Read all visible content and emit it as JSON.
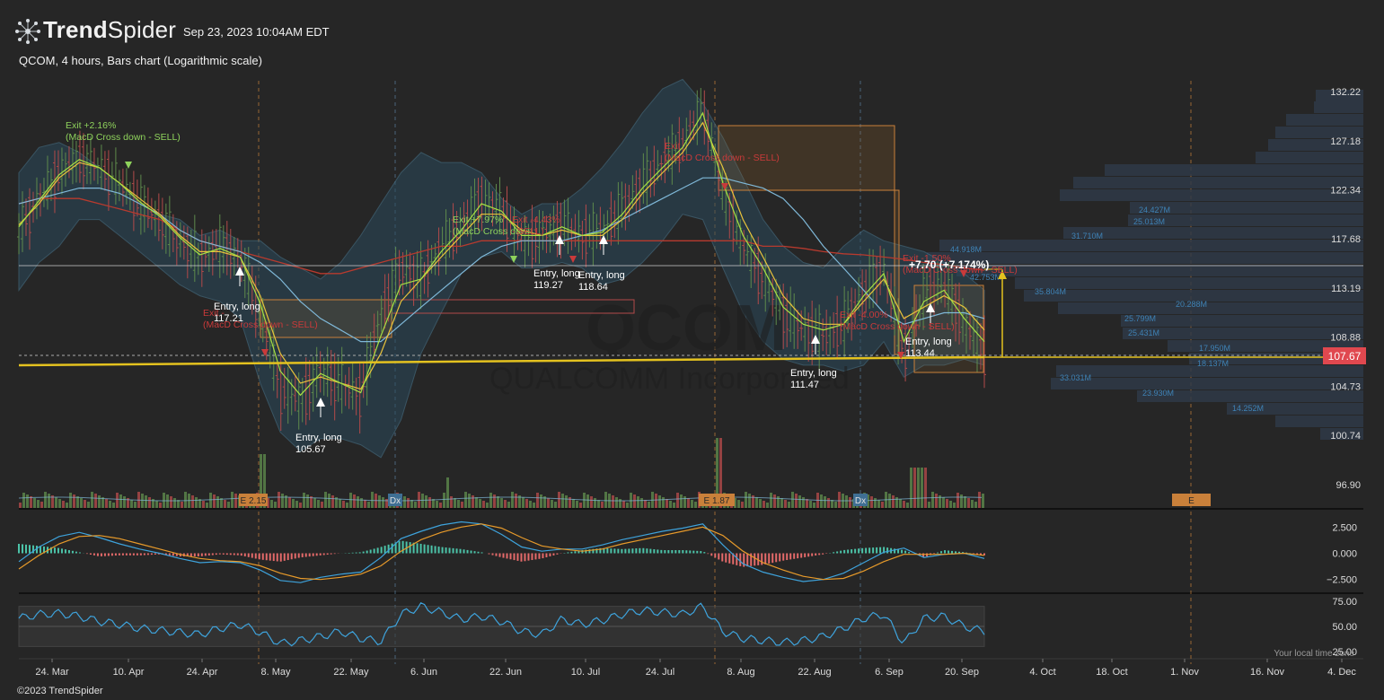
{
  "header": {
    "brand_bold": "Trend",
    "brand_light": "Spider",
    "date": "Sep 23, 2023 10:04AM EDT",
    "subtitle": "QCOM, 4 hours, Bars chart (Logarithmic scale)"
  },
  "footer": {
    "copyright": "©2023 TrendSpider",
    "local_time": "Your local time zone"
  },
  "colors": {
    "background": "#262626",
    "bull": "#5e8a4c",
    "bear": "#b24a4a",
    "bollinger_fill": "#2b4a5c",
    "ma_slow": "#b83a2e",
    "ma_blue": "#7fb8d8",
    "ma_yellow": "#e9c33b",
    "ma_green": "#a7e043",
    "price_line": "#e4c21f",
    "entry_label": "#ffffff",
    "exit_win": "#8fd35c",
    "exit_loss": "#c93a3a",
    "macd_pos": "#4cc3a8",
    "macd_neg": "#e46a6a",
    "rsi_line": "#3ea3dc",
    "earnings_marker": "#c9803a"
  },
  "chart_data": [
    {
      "type": "bar",
      "title": "QCOM, 4 hours, Bars chart (Logarithmic scale)",
      "scale": "log",
      "xlabel": "",
      "ylabel": "",
      "x_ticks": [
        "24. Mar",
        "10. Apr",
        "24. Apr",
        "8. May",
        "22. May",
        "6. Jun",
        "22. Jun",
        "10. Jul",
        "24. Jul",
        "8. Aug",
        "22. Aug",
        "6. Sep",
        "20. Sep",
        "4. Oct",
        "18. Oct",
        "1. Nov",
        "16. Nov",
        "4. Dec"
      ],
      "y_ticks": [
        "132.22",
        "127.18",
        "122.34",
        "117.68",
        "113.19",
        "108.88",
        "104.73",
        "100.74",
        "96.90"
      ],
      "ylim": [
        96.9,
        132.22
      ],
      "last_price": "107.67",
      "close_series": {
        "x": [
          "2023-03-16",
          "2023-03-20",
          "2023-03-24",
          "2023-03-28",
          "2023-04-01",
          "2023-04-05",
          "2023-04-09",
          "2023-04-13",
          "2023-04-17",
          "2023-04-21",
          "2023-04-25",
          "2023-04-29",
          "2023-05-03",
          "2023-05-07",
          "2023-05-11",
          "2023-05-15",
          "2023-05-19",
          "2023-05-23",
          "2023-05-27",
          "2023-05-31",
          "2023-06-04",
          "2023-06-08",
          "2023-06-12",
          "2023-06-16",
          "2023-06-20",
          "2023-06-24",
          "2023-06-28",
          "2023-07-02",
          "2023-07-06",
          "2023-07-10",
          "2023-07-14",
          "2023-07-18",
          "2023-07-22",
          "2023-07-26",
          "2023-07-30",
          "2023-08-03",
          "2023-08-07",
          "2023-08-11",
          "2023-08-15",
          "2023-08-19",
          "2023-08-23",
          "2023-08-27",
          "2023-08-31",
          "2023-09-04",
          "2023-09-08",
          "2023-09-12",
          "2023-09-16",
          "2023-09-20",
          "2023-09-22"
        ],
        "y": [
          118.5,
          121.5,
          124.0,
          125.5,
          124.5,
          123.0,
          121.0,
          119.5,
          117.5,
          116.0,
          117.0,
          116.0,
          111.0,
          104.5,
          103.5,
          106.0,
          105.0,
          104.0,
          111.0,
          115.0,
          114.0,
          117.0,
          119.0,
          121.5,
          120.5,
          117.5,
          118.0,
          119.0,
          118.0,
          118.5,
          120.5,
          123.0,
          125.0,
          127.0,
          130.5,
          122.0,
          117.0,
          114.0,
          111.0,
          109.5,
          109.0,
          110.0,
          113.0,
          115.0,
          107.5,
          112.5,
          113.5,
          110.0,
          107.67
        ]
      },
      "bollinger_upper": [
        124.0,
        126.5,
        127.0,
        126.0,
        124.5,
        123.0,
        121.0,
        120.0,
        119.5,
        118.0,
        118.5,
        117.5,
        117.5,
        116.0,
        115.0,
        114.0,
        115.5,
        118.0,
        121.0,
        124.0,
        126.0,
        125.0,
        125.0,
        124.0,
        121.5,
        120.0,
        121.0,
        121.0,
        122.5,
        124.5,
        127.0,
        130.0,
        132.5,
        133.5,
        131.0,
        127.5,
        123.5,
        119.5,
        117.0,
        115.5,
        115.0,
        117.0,
        118.5,
        117.5,
        117.0,
        116.5,
        115.5,
        114.5,
        113.0
      ],
      "bollinger_lower": [
        113.0,
        115.5,
        117.0,
        119.5,
        119.5,
        118.0,
        116.5,
        115.0,
        113.5,
        112.5,
        112.0,
        110.5,
        105.0,
        101.0,
        99.5,
        100.5,
        100.5,
        100.0,
        99.0,
        102.0,
        107.5,
        111.0,
        114.5,
        116.0,
        116.5,
        115.0,
        115.0,
        115.5,
        115.0,
        113.5,
        114.0,
        115.5,
        117.5,
        120.0,
        119.5,
        115.0,
        111.0,
        108.5,
        107.0,
        106.5,
        106.5,
        106.0,
        106.5,
        108.5,
        105.5,
        106.5,
        106.5,
        107.0,
        106.5
      ],
      "sma_slow": [
        121.0,
        121.5,
        121.5,
        121.5,
        121.0,
        120.5,
        120.0,
        119.5,
        118.5,
        117.5,
        117.0,
        116.5,
        116.0,
        115.5,
        115.0,
        114.5,
        114.5,
        115.0,
        115.5,
        116.0,
        116.5,
        117.0,
        117.0,
        117.5,
        117.5,
        117.5,
        117.5,
        117.5,
        117.5,
        117.5,
        117.5,
        117.5,
        117.5,
        117.5,
        117.5,
        117.5,
        117.5,
        117.0,
        117.0,
        116.8,
        116.5,
        116.3,
        116.2,
        116.0,
        115.8,
        115.5,
        115.3,
        115.0,
        114.8
      ],
      "sma_blue": [
        121.0,
        121.5,
        122.0,
        122.5,
        122.5,
        122.0,
        121.0,
        120.0,
        118.5,
        117.5,
        117.0,
        116.5,
        115.5,
        114.0,
        112.0,
        110.5,
        109.5,
        108.5,
        108.5,
        110.0,
        111.5,
        113.0,
        114.5,
        116.0,
        117.0,
        117.5,
        117.5,
        117.5,
        118.0,
        118.5,
        119.5,
        120.5,
        121.5,
        122.5,
        123.5,
        123.5,
        123.0,
        122.5,
        121.5,
        119.5,
        117.0,
        115.0,
        113.0,
        111.0,
        110.0,
        110.5,
        111.0,
        111.0,
        110.5
      ],
      "ema_yellow": [
        119.0,
        121.0,
        123.5,
        125.0,
        124.5,
        123.0,
        121.5,
        120.0,
        118.0,
        116.5,
        116.5,
        116.0,
        112.5,
        107.5,
        105.0,
        105.5,
        105.0,
        104.5,
        107.5,
        112.0,
        114.0,
        116.0,
        118.0,
        120.0,
        120.0,
        118.5,
        118.0,
        118.5,
        118.0,
        118.0,
        119.5,
        122.0,
        124.0,
        126.0,
        129.0,
        124.5,
        119.5,
        116.0,
        112.5,
        110.5,
        110.0,
        110.0,
        112.0,
        114.0,
        110.5,
        111.5,
        112.5,
        111.5,
        109.5
      ],
      "ema_green": [
        118.8,
        121.3,
        123.8,
        125.3,
        124.5,
        123.0,
        121.2,
        119.8,
        117.8,
        116.2,
        116.8,
        116.0,
        111.8,
        106.0,
        104.0,
        105.8,
        105.0,
        104.2,
        109.0,
        113.5,
        114.0,
        116.5,
        118.5,
        121.0,
        120.3,
        118.0,
        118.0,
        118.8,
        118.0,
        118.3,
        120.0,
        122.5,
        124.5,
        126.5,
        130.0,
        123.0,
        118.0,
        115.0,
        111.5,
        110.0,
        109.5,
        110.0,
        112.5,
        114.5,
        108.5,
        112.0,
        113.0,
        110.5,
        108.5
      ],
      "volume_profile": [
        "24.427M",
        "25.013M",
        "31.710M",
        "44.918M",
        "42.753M",
        "35.804M",
        "20.288M",
        "25.799M",
        "25.431M",
        "17.950M",
        "18.137M",
        "33.031M",
        "23.930M",
        "14.252M"
      ],
      "earnings_markers": [
        "E 2.15",
        "E 1.87",
        "E"
      ],
      "dividend_markers": [
        "Dx",
        "Dx"
      ],
      "trade_labels": [
        {
          "kind": "entry",
          "text": "Entry, long",
          "price": "117.21"
        },
        {
          "kind": "entry",
          "text": "Entry, long",
          "price": "105.67"
        },
        {
          "kind": "entry",
          "text": "Entry, long",
          "price": "119.27"
        },
        {
          "kind": "entry",
          "text": "Entry, long",
          "price": "118.64"
        },
        {
          "kind": "entry",
          "text": "Entry, long",
          "price": "111.47"
        },
        {
          "kind": "entry",
          "text": "Entry, long",
          "price": "113.44"
        },
        {
          "kind": "exit_win",
          "text": "Exit +2.16%",
          "reason": "(MacD Cross down - SELL)"
        },
        {
          "kind": "exit_loss",
          "text": "Exit -",
          "reason": "(MacD Cross down - SELL)"
        },
        {
          "kind": "exit_win",
          "text": "Exit +7.97%",
          "reason": "(MacD Cross down"
        },
        {
          "kind": "exit_loss",
          "text": "Exit -4.43%",
          "reason": "- SELL)"
        },
        {
          "kind": "exit_loss",
          "text": "Exit",
          "reason": "(MacD Cross down - SELL)"
        },
        {
          "kind": "exit_loss",
          "text": "Exit -4.00%",
          "reason": "(MacD Cross down - SELL)"
        },
        {
          "kind": "exit_loss",
          "text": "Exit -1.50%",
          "reason": "(MacD Cross down - SELL)"
        }
      ],
      "measure_label": "+7.70 (+7.174%)"
    },
    {
      "type": "bar",
      "title": "",
      "indicator": "MACD",
      "y_ticks": [
        "2.500",
        "0.000",
        "−2.500"
      ],
      "ylim": [
        -3.3,
        3.3
      ],
      "histogram": [
        0.9,
        0.7,
        0.5,
        0.1,
        -0.3,
        -0.2,
        -0.2,
        -0.1,
        -0.3,
        -0.3,
        -0.1,
        -0.2,
        -0.6,
        -0.8,
        -0.4,
        -0.2,
        0.0,
        0.1,
        0.6,
        1.2,
        0.9,
        0.6,
        0.4,
        0.1,
        -0.4,
        -0.8,
        -0.5,
        0.0,
        0.3,
        0.5,
        0.4,
        0.5,
        0.3,
        0.3,
        0.2,
        -0.8,
        -1.3,
        -1.1,
        -0.7,
        -0.4,
        -0.1,
        0.3,
        0.5,
        0.6,
        0.3,
        -0.4,
        0.3,
        0.1,
        -0.2
      ],
      "macd_line": [
        -0.8,
        0.6,
        1.6,
        2.0,
        1.5,
        0.9,
        0.4,
        0.0,
        -0.5,
        -0.9,
        -0.8,
        -0.9,
        -1.6,
        -2.6,
        -2.8,
        -2.3,
        -2.0,
        -1.8,
        -0.4,
        1.4,
        2.1,
        2.7,
        3.0,
        2.8,
        1.8,
        0.6,
        0.2,
        0.4,
        0.4,
        0.8,
        1.3,
        1.7,
        2.1,
        2.4,
        2.8,
        0.8,
        -1.0,
        -1.8,
        -2.3,
        -2.7,
        -2.5,
        -1.9,
        -0.9,
        0.1,
        0.5,
        -0.4,
        -0.1,
        0.0,
        -0.5
      ],
      "signal_line": [
        -1.5,
        -0.2,
        0.9,
        1.6,
        1.7,
        1.4,
        0.9,
        0.4,
        -0.1,
        -0.5,
        -0.7,
        -0.8,
        -1.2,
        -1.9,
        -2.4,
        -2.5,
        -2.3,
        -2.0,
        -1.2,
        0.2,
        1.3,
        2.0,
        2.5,
        2.8,
        2.4,
        1.5,
        0.7,
        0.4,
        0.2,
        0.4,
        0.9,
        1.3,
        1.7,
        2.1,
        2.5,
        1.7,
        0.2,
        -0.9,
        -1.6,
        -2.2,
        -2.5,
        -2.4,
        -1.7,
        -0.8,
        -0.1,
        -0.1,
        -0.1,
        0.0,
        -0.2
      ]
    },
    {
      "type": "line",
      "title": "",
      "indicator": "RSI",
      "y_ticks": [
        "75.00",
        "50.00",
        "25.00"
      ],
      "ylim": [
        25,
        75
      ],
      "band": [
        30,
        70
      ],
      "values": [
        58,
        62,
        63,
        60,
        55,
        52,
        48,
        46,
        44,
        42,
        48,
        52,
        44,
        33,
        36,
        40,
        45,
        38,
        35,
        62,
        70,
        64,
        57,
        60,
        55,
        45,
        42,
        57,
        52,
        56,
        62,
        66,
        64,
        62,
        70,
        45,
        38,
        36,
        34,
        36,
        40,
        48,
        58,
        62,
        33,
        58,
        60,
        50,
        45
      ]
    }
  ]
}
